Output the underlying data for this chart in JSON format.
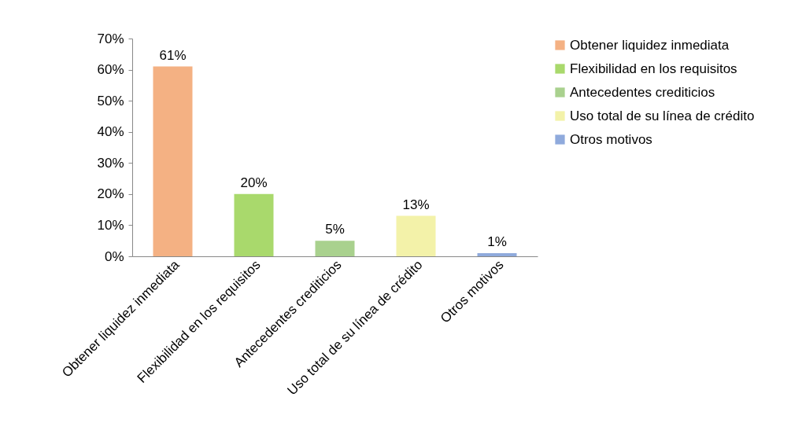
{
  "chart_data": {
    "type": "bar",
    "categories": [
      "Obtener liquidez inmediata",
      "Flexibilidad en los requisitos",
      "Antecedentes crediticios",
      "Uso total de su línea de crédito",
      "Otros motivos"
    ],
    "series": [
      {
        "name": "Obtener liquidez inmediata",
        "color": "#f4b183",
        "values": [
          61,
          null,
          null,
          null,
          null
        ],
        "value_labels": [
          "61%",
          null,
          null,
          null,
          null
        ]
      },
      {
        "name": "Flexibilidad en los requisitos",
        "color": "#a9d96c",
        "values": [
          null,
          20,
          null,
          null,
          null
        ],
        "value_labels": [
          null,
          "20%",
          null,
          null,
          null
        ]
      },
      {
        "name": "Antecedentes crediticios",
        "color": "#a9d18e",
        "values": [
          null,
          null,
          5,
          null,
          null
        ],
        "value_labels": [
          null,
          null,
          "5%",
          null,
          null
        ]
      },
      {
        "name": "Uso total de su línea de crédito",
        "color": "#f3f2a9",
        "values": [
          null,
          null,
          null,
          13,
          null
        ],
        "value_labels": [
          null,
          null,
          null,
          "13%",
          null
        ]
      },
      {
        "name": "Otros motivos",
        "color": "#8faadc",
        "values": [
          null,
          null,
          null,
          null,
          1
        ],
        "value_labels": [
          null,
          null,
          null,
          null,
          "1%"
        ]
      }
    ],
    "ylim": [
      0,
      70
    ],
    "yticks": [
      {
        "value": 0,
        "label": "0%"
      },
      {
        "value": 10,
        "label": "10%"
      },
      {
        "value": 20,
        "label": "20%"
      },
      {
        "value": 30,
        "label": "30%"
      },
      {
        "value": 40,
        "label": "40%"
      },
      {
        "value": 50,
        "label": "50%"
      },
      {
        "value": 60,
        "label": "60%"
      },
      {
        "value": 70,
        "label": "70%"
      }
    ],
    "grid": false,
    "legend": "right"
  }
}
